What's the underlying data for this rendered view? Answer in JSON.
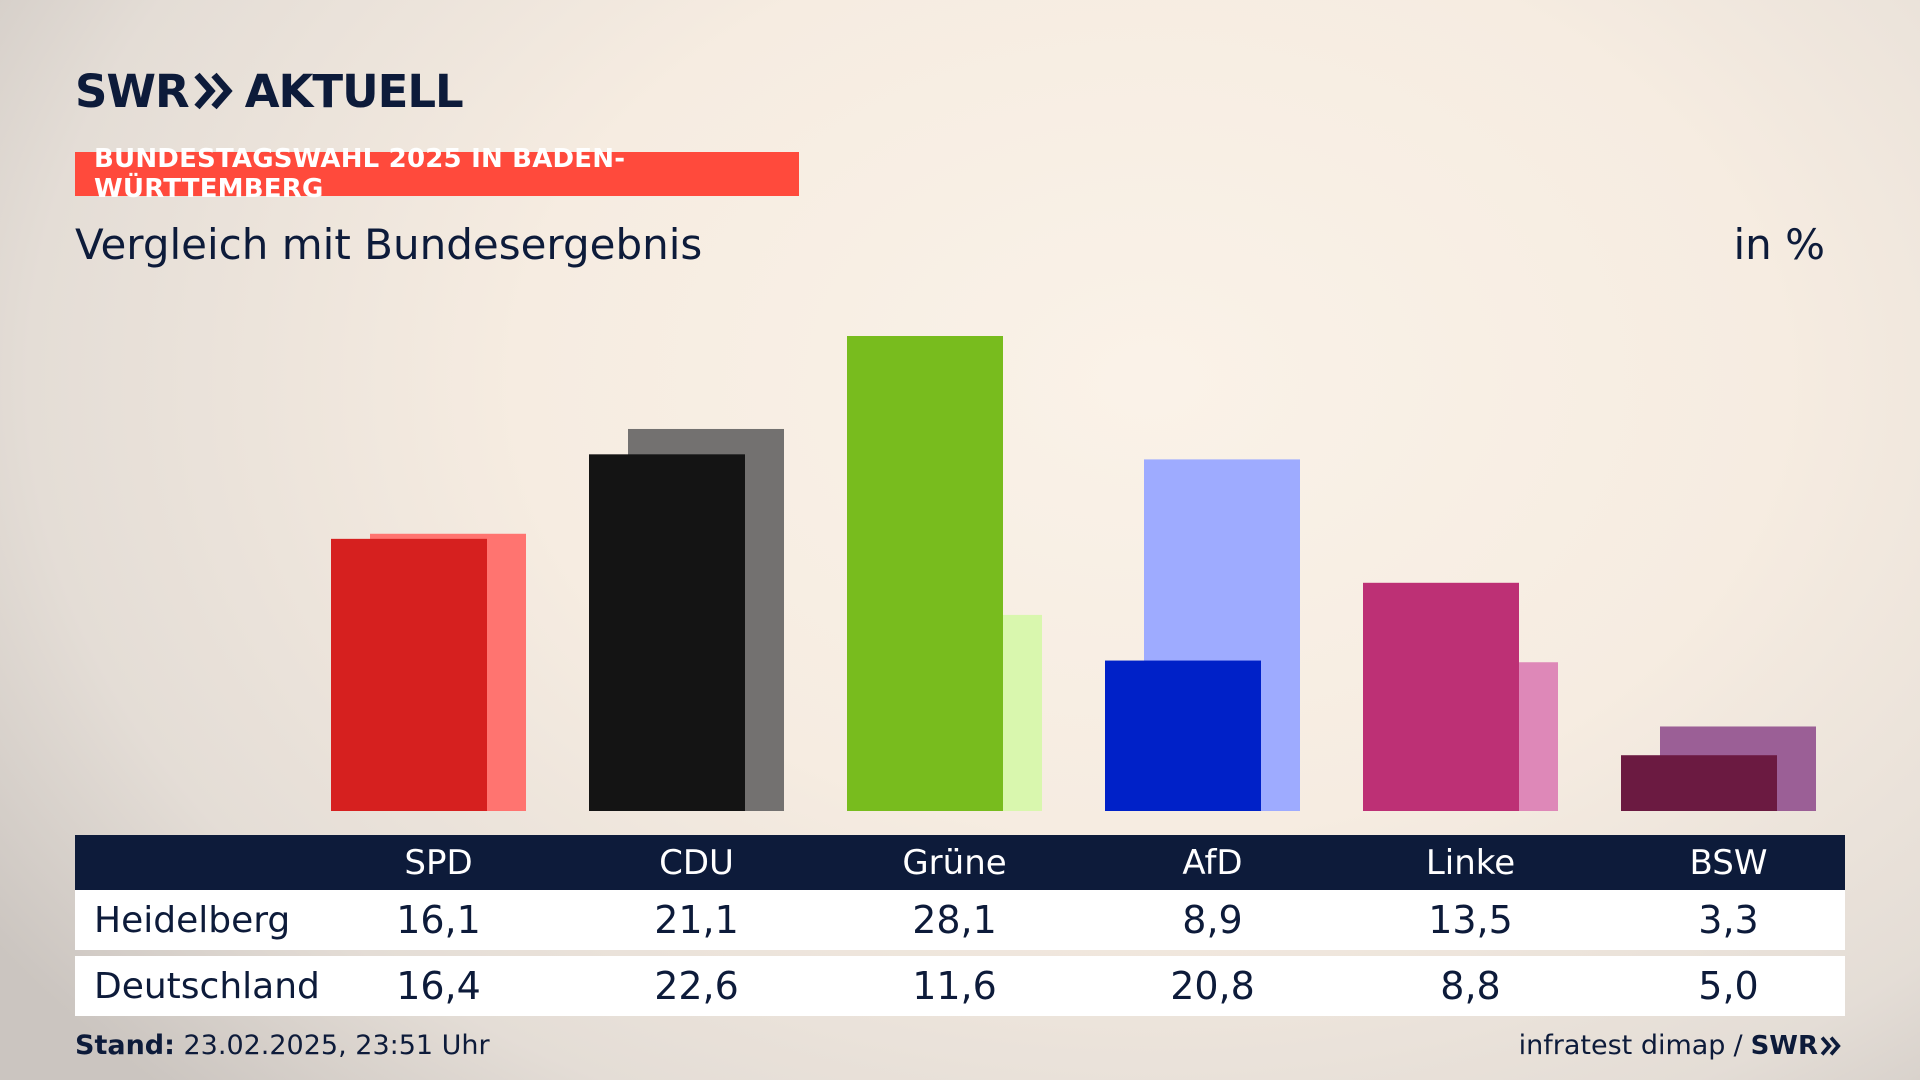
{
  "header": {
    "brand_swr": "SWR",
    "brand_aktuell": "AKTUELL",
    "tag": "BUNDESTAGSWAHL 2025 IN BADEN-WÜRTTEMBERG",
    "subtitle": "Vergleich mit Bundesergebnis",
    "unit": "in %"
  },
  "footer": {
    "stand_label": "Stand:",
    "stand_value": " 23.02.2025, 23:51 Uhr",
    "source": "infratest dimap",
    "separator": "/",
    "brand": "SWR"
  },
  "chart_data": {
    "type": "bar",
    "categories": [
      "SPD",
      "CDU",
      "Grüne",
      "AfD",
      "Linke",
      "BSW"
    ],
    "series": [
      {
        "name": "Heidelberg",
        "values": [
          16.1,
          21.1,
          28.1,
          8.9,
          13.5,
          3.3
        ],
        "colors": [
          "#d6201f",
          "#141414",
          "#78bc1e",
          "#0021c8",
          "#bd3075",
          "#6b1a41"
        ]
      },
      {
        "name": "Deutschland",
        "values": [
          16.4,
          22.6,
          11.6,
          20.8,
          8.8,
          5.0
        ],
        "colors": [
          "#ff7470",
          "#737170",
          "#d9f7ae",
          "#9eabff",
          "#de88b8",
          "#9b5f96"
        ]
      }
    ],
    "value_labels": [
      [
        "16,1",
        "21,1",
        "28,1",
        "8,9",
        "13,5",
        "3,3"
      ],
      [
        "16,4",
        "22,6",
        "11,6",
        "20,8",
        "8,8",
        "5,0"
      ]
    ],
    "ylim": [
      0,
      28.1
    ],
    "grid": false,
    "legend": "none"
  },
  "colors": {
    "navy": "#0d1b3a",
    "accent": "#ff4a3c"
  }
}
